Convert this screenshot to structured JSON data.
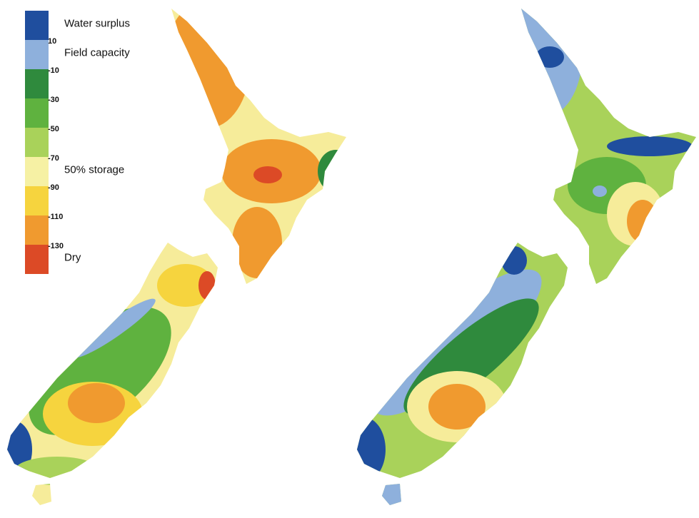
{
  "legend": {
    "labels": [
      {
        "text": "Water surplus",
        "position": 0
      },
      {
        "text": "Field capacity",
        "position": 1
      },
      {
        "text": "50% storage",
        "position": 5
      },
      {
        "text": "Dry",
        "position": 8
      }
    ],
    "colors": [
      "#1f4e9e",
      "#8eb0dc",
      "#2f8a3d",
      "#5fb23f",
      "#a9d25a",
      "#f6f1a4",
      "#f6d43e",
      "#f09a2f",
      "#dc4a26"
    ],
    "ticks": [
      10,
      -10,
      -30,
      -50,
      -70,
      -90,
      -110,
      -130
    ]
  }
}
